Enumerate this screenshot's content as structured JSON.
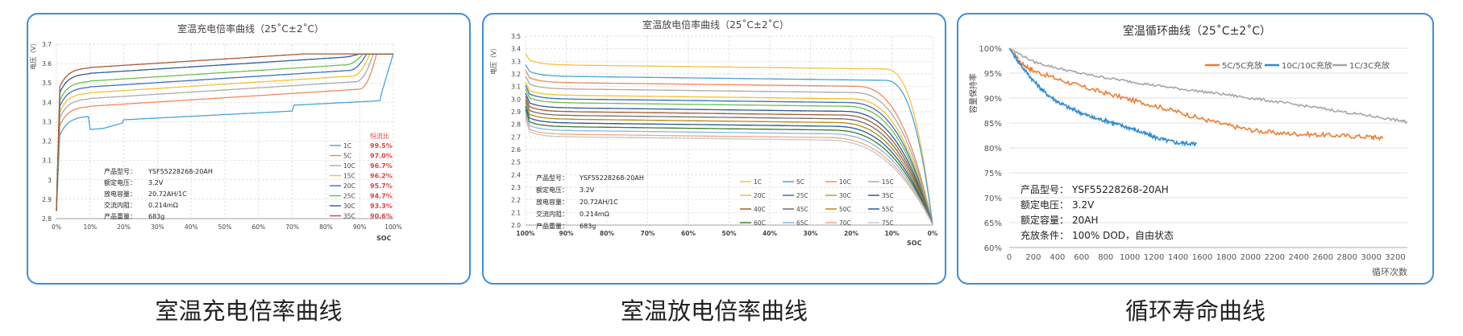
{
  "captions": [
    "室温充电倍率曲线",
    "室温放电倍率曲线",
    "循环寿命曲线"
  ],
  "chart_data": [
    {
      "type": "line",
      "title": "室温充电倍率曲线（25˚C±2˚C）",
      "xlabel": "SOC",
      "ylabel": "电压（V）",
      "xlim": [
        0,
        100
      ],
      "ylim": [
        2.8,
        3.7
      ],
      "x_ticks": [
        "0%",
        "10%",
        "20%",
        "30%",
        "40%",
        "50%",
        "60%",
        "70%",
        "80%",
        "90%",
        "100%"
      ],
      "y_ticks": [
        "2.8",
        "2.9",
        "3",
        "3.1",
        "3.2",
        "3.3",
        "3.4",
        "3.5",
        "3.6",
        "3.7"
      ],
      "grid": true,
      "legend_position": "bottom-right",
      "ratio_header": "恒流比",
      "series": [
        {
          "name": "1C",
          "ratio": "99.5%",
          "color": "#4aa3d5",
          "plateau": 3.35
        },
        {
          "name": "5C",
          "ratio": "97.0%",
          "color": "#ee8a55",
          "plateau": 3.4
        },
        {
          "name": "10C",
          "ratio": "96.7%",
          "color": "#aaaaaa",
          "plateau": 3.44
        },
        {
          "name": "15C",
          "ratio": "96.2%",
          "color": "#f2c12e",
          "plateau": 3.47
        },
        {
          "name": "20C",
          "ratio": "95.7%",
          "color": "#3b6fbd",
          "plateau": 3.5
        },
        {
          "name": "25C",
          "ratio": "94.7%",
          "color": "#6cbf4a",
          "plateau": 3.53
        },
        {
          "name": "30C",
          "ratio": "93.3%",
          "color": "#2f5b96",
          "plateau": 3.57
        },
        {
          "name": "35C",
          "ratio": "90.6%",
          "color": "#a85a2e",
          "plateau": 3.6
        }
      ],
      "specs": [
        [
          "产品型号：",
          "YSF55228268-20AH"
        ],
        [
          "额定电压：",
          "3.2V"
        ],
        [
          "放电容量：",
          "20.72AH/1C"
        ],
        [
          "交流内阻：",
          "0.214mΩ"
        ],
        [
          "产品重量：",
          "683g"
        ]
      ]
    },
    {
      "type": "line",
      "title": "室温放电倍率曲线（25˚C±2˚C）",
      "xlabel": "SOC",
      "ylabel": "电压（V）",
      "xlim": [
        100,
        0
      ],
      "ylim": [
        2.0,
        3.5
      ],
      "x_ticks": [
        "100%",
        "90%",
        "80%",
        "70%",
        "60%",
        "50%",
        "40%",
        "30%",
        "20%",
        "10%",
        "0%"
      ],
      "y_ticks": [
        "2.0",
        "2.1",
        "2.2",
        "2.3",
        "2.4",
        "2.5",
        "2.6",
        "2.7",
        "2.8",
        "2.9",
        "3.0",
        "3.1",
        "3.2",
        "3.3",
        "3.4",
        "3.5"
      ],
      "grid": true,
      "legend_position": "bottom-right",
      "series": [
        {
          "name": "1C",
          "color": "#f5c242",
          "plateau": 3.27
        },
        {
          "name": "5C",
          "color": "#4aa3d5",
          "plateau": 3.18
        },
        {
          "name": "10C",
          "color": "#ee8a55",
          "plateau": 3.13
        },
        {
          "name": "15C",
          "color": "#aaaaaa",
          "plateau": 3.08
        },
        {
          "name": "20C",
          "color": "#f2c12e",
          "plateau": 3.03
        },
        {
          "name": "25C",
          "color": "#3b6fbd",
          "plateau": 3.0
        },
        {
          "name": "30C",
          "color": "#6cbf4a",
          "plateau": 2.97
        },
        {
          "name": "35C",
          "color": "#2f5b96",
          "plateau": 2.93
        },
        {
          "name": "40C",
          "color": "#a85a2e",
          "plateau": 2.9
        },
        {
          "name": "45C",
          "color": "#6d6d6d",
          "plateau": 2.87
        },
        {
          "name": "50C",
          "color": "#b58a10",
          "plateau": 2.84
        },
        {
          "name": "55C",
          "color": "#245a9e",
          "plateau": 2.81
        },
        {
          "name": "60C",
          "color": "#3e7a2a",
          "plateau": 2.78
        },
        {
          "name": "65C",
          "color": "#86b9e6",
          "plateau": 2.75
        },
        {
          "name": "70C",
          "color": "#f2a981",
          "plateau": 2.72
        },
        {
          "name": "75C",
          "color": "#c7c7c7",
          "plateau": 2.7
        }
      ],
      "specs": [
        [
          "产品型号：",
          "YSF55228268-20AH"
        ],
        [
          "额定电压：",
          "3.2V"
        ],
        [
          "放电容量：",
          "20.72AH/1C"
        ],
        [
          "交流内阻：",
          "0.214mΩ"
        ],
        [
          "产品重量：",
          "683g"
        ]
      ]
    },
    {
      "type": "line",
      "title": "室温循环曲线（25˚C±2˚C）",
      "xlabel": "循环次数",
      "ylabel": "容量保持率",
      "xlim": [
        0,
        3300
      ],
      "ylim": [
        60,
        100
      ],
      "x_ticks": [
        "0",
        "200",
        "400",
        "600",
        "800",
        "1000",
        "1200",
        "1400",
        "1600",
        "1800",
        "2000",
        "2200",
        "2400",
        "2600",
        "2800",
        "3000",
        "3200"
      ],
      "y_ticks": [
        "60%",
        "65%",
        "70%",
        "75%",
        "80%",
        "85%",
        "90%",
        "95%",
        "100%"
      ],
      "grid": "horizontal",
      "legend_position": "top-right",
      "series": [
        {
          "name": "5C/5C充放",
          "color": "#ed7d31",
          "x": [
            0,
            100,
            200,
            400,
            600,
            800,
            1000,
            1200,
            1400,
            1600,
            1800,
            2000,
            2200,
            2400,
            2600,
            2800,
            3000,
            3100
          ],
          "y": [
            100,
            97,
            95.5,
            93.8,
            92.3,
            91,
            89.7,
            88.5,
            87.2,
            85.8,
            84.6,
            83.6,
            83,
            82.8,
            82.6,
            82.4,
            82.2,
            82.0
          ]
        },
        {
          "name": "10C/10C充放",
          "color": "#2e8bd0",
          "x": [
            0,
            100,
            200,
            300,
            400,
            500,
            600,
            700,
            800,
            900,
            1000,
            1100,
            1200,
            1300,
            1400,
            1500,
            1550
          ],
          "y": [
            100,
            96.5,
            93.5,
            91.0,
            89.3,
            88.0,
            87.0,
            86.0,
            85.5,
            84.7,
            84.0,
            83.1,
            82.2,
            81.5,
            81.0,
            80.9,
            80.8
          ]
        },
        {
          "name": "1C/3C充放",
          "color": "#a5a5a5",
          "x": [
            0,
            200,
            400,
            600,
            800,
            1000,
            1200,
            1400,
            1600,
            1800,
            2000,
            2200,
            2400,
            2600,
            2800,
            3000,
            3200,
            3300
          ],
          "y": [
            100,
            97.3,
            96.0,
            94.9,
            94.1,
            93.3,
            92.6,
            91.9,
            91.3,
            90.7,
            90.0,
            89.3,
            88.6,
            87.9,
            87.1,
            86.4,
            85.6,
            85.2
          ]
        }
      ],
      "specs": [
        [
          "产品型号：",
          "YSF55228268-20AH"
        ],
        [
          "额定电压：",
          "3.2V"
        ],
        [
          "额定容量：",
          "20AH"
        ],
        [
          "充放条件：",
          "100% DOD，自由状态"
        ]
      ]
    }
  ]
}
